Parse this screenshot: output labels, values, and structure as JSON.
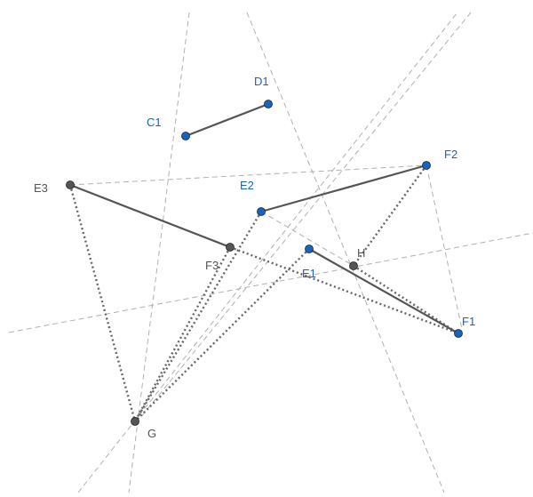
{
  "colors": {
    "background": "#ffffff",
    "blue_point": "#1565c0",
    "blue_label": "#1565c0",
    "gray_point": "#555555",
    "gray_label": "#555555",
    "segment": "#555555",
    "dotted": "#666666",
    "construction_line": "#b0b0b0"
  },
  "points": [
    {
      "id": "C1",
      "label": "C1",
      "kind": "free"
    },
    {
      "id": "D1",
      "label": "D1",
      "kind": "free"
    },
    {
      "id": "E1",
      "label": "E1",
      "kind": "free"
    },
    {
      "id": "F1",
      "label": "F1",
      "kind": "free"
    },
    {
      "id": "E2",
      "label": "E2",
      "kind": "free"
    },
    {
      "id": "F2",
      "label": "F2",
      "kind": "free"
    },
    {
      "id": "E3",
      "label": "E3",
      "kind": "dependent"
    },
    {
      "id": "F3",
      "label": "F3",
      "kind": "dependent"
    },
    {
      "id": "G",
      "label": "G",
      "kind": "dependent"
    },
    {
      "id": "H",
      "label": "H",
      "kind": "dependent"
    }
  ],
  "segments": [
    [
      "C1",
      "D1"
    ],
    [
      "E2",
      "F2"
    ],
    [
      "E3",
      "F3"
    ],
    [
      "E1",
      "F1"
    ]
  ],
  "dotted_segments": [
    [
      "E3",
      "G"
    ],
    [
      "F3",
      "G"
    ],
    [
      "E2",
      "G"
    ],
    [
      "E1",
      "G"
    ],
    [
      "F3",
      "F1"
    ],
    [
      "F2",
      "H"
    ],
    [
      "H",
      "F1"
    ]
  ]
}
